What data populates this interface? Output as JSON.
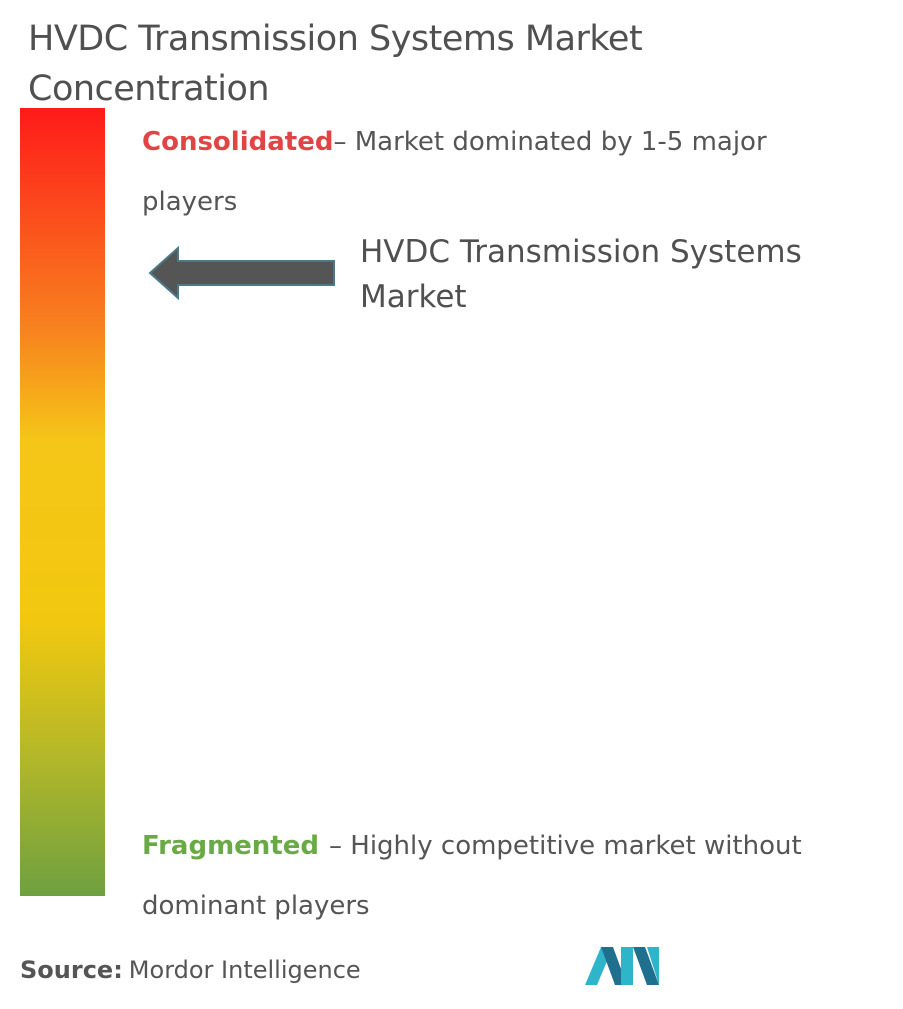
{
  "header": {
    "title": "HVDC Transmission Systems Market Concentration"
  },
  "scale": {
    "consolidated": {
      "label": "Consolidated",
      "description": "– Market dominated by 1-5 major players"
    },
    "fragmented": {
      "label": "Fragmented",
      "description": "– Highly competitive market without dominant players"
    }
  },
  "marker": {
    "label": "HVDC Transmission Systems Market"
  },
  "footer": {
    "source_label": "Source:",
    "source": "Mordor Intelligence"
  }
}
